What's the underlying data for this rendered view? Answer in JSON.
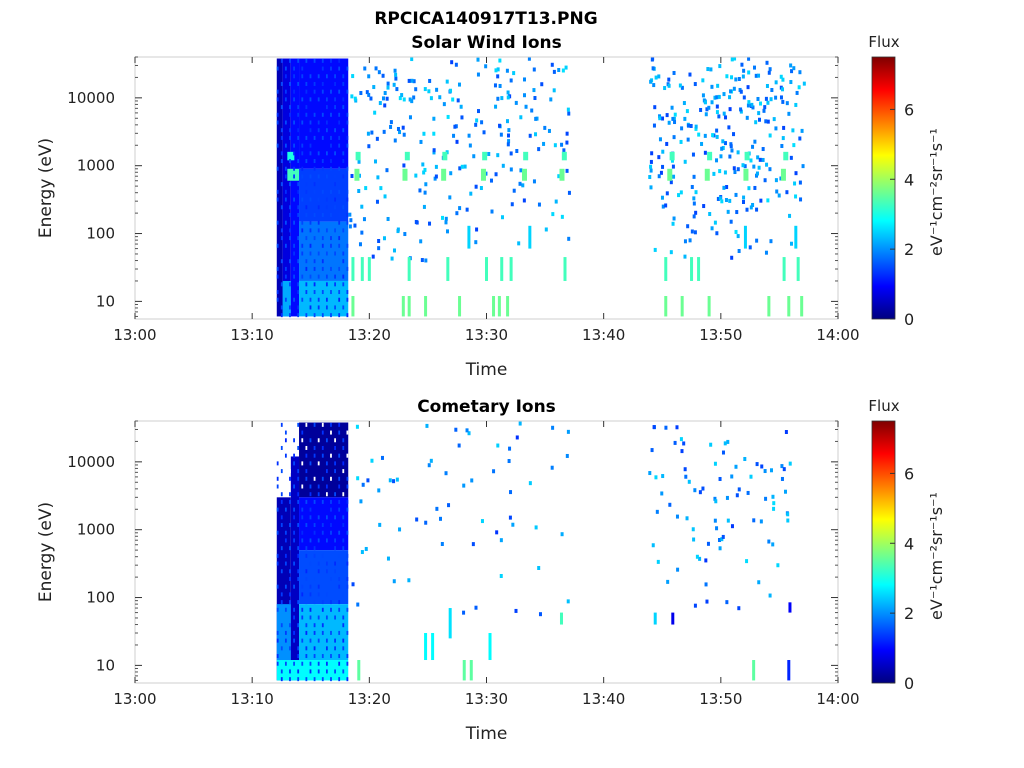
{
  "figure_title": "RPCICA140917T13.PNG",
  "colorscale": [
    "#00007f",
    "#0000ff",
    "#007fff",
    "#00ffff",
    "#7fff7f",
    "#ffff00",
    "#ff7f00",
    "#ff0000",
    "#7f0000"
  ],
  "chart_data": [
    {
      "type": "heatmap",
      "title": "Solar Wind Ions",
      "xlabel": "Time",
      "ylabel": "Energy (eV)",
      "x_ticks": [
        "13:00",
        "13:10",
        "13:20",
        "13:30",
        "13:40",
        "13:50",
        "14:00"
      ],
      "xlim_minutes": [
        0,
        60
      ],
      "y_ticks": [
        10,
        100,
        1000,
        10000
      ],
      "y_tick_labels": [
        "10",
        "100",
        "1000",
        "10000"
      ],
      "y_scale": "log",
      "ylim": [
        5.5,
        40000
      ],
      "colorbar": {
        "title": "Flux",
        "label": "eV⁻¹cm⁻²sr⁻¹s⁻¹",
        "ticks": [
          0,
          2,
          4,
          6
        ],
        "range": [
          0,
          7.5
        ]
      },
      "blocks": [
        {
          "t0": 12.1,
          "t1": 12.6,
          "e0": 6,
          "e1": 38000,
          "flux": 0.4
        },
        {
          "t0": 12.6,
          "t1": 13.3,
          "e0": 6,
          "e1": 38000,
          "flux": 0.7
        },
        {
          "t0": 13.3,
          "t1": 14.0,
          "e0": 6,
          "e1": 38000,
          "flux": 1.0
        },
        {
          "t0": 14.0,
          "t1": 18.2,
          "e0": 900,
          "e1": 38000,
          "flux": 1.0
        },
        {
          "t0": 14.0,
          "t1": 18.2,
          "e0": 150,
          "e1": 900,
          "flux": 1.4
        },
        {
          "t0": 14.0,
          "t1": 18.2,
          "e0": 20,
          "e1": 150,
          "flux": 1.8
        },
        {
          "t0": 14.0,
          "t1": 18.2,
          "e0": 6,
          "e1": 20,
          "flux": 2.3
        },
        {
          "t0": 13.0,
          "t1": 14.0,
          "e0": 600,
          "e1": 900,
          "flux": 3.3
        },
        {
          "t0": 13.0,
          "t1": 13.6,
          "e0": 1200,
          "e1": 1600,
          "flux": 3.0
        },
        {
          "t0": 12.6,
          "t1": 13.3,
          "e0": 6,
          "e1": 20,
          "flux": 2.2
        }
      ],
      "bars": [
        {
          "t": 18.6,
          "e0": 6,
          "e1": 12,
          "flux": 3.6
        },
        {
          "t": 18.6,
          "e0": 20,
          "e1": 45,
          "flux": 3.3
        },
        {
          "t": 19.4,
          "e0": 20,
          "e1": 45,
          "flux": 3.3
        },
        {
          "t": 20.0,
          "e0": 20,
          "e1": 45,
          "flux": 3.3
        },
        {
          "t": 22.9,
          "e0": 6,
          "e1": 12,
          "flux": 3.6
        },
        {
          "t": 23.4,
          "e0": 6,
          "e1": 12,
          "flux": 3.6
        },
        {
          "t": 24.8,
          "e0": 6,
          "e1": 12,
          "flux": 3.6
        },
        {
          "t": 23.4,
          "e0": 20,
          "e1": 45,
          "flux": 3.3
        },
        {
          "t": 26.7,
          "e0": 20,
          "e1": 45,
          "flux": 3.3
        },
        {
          "t": 27.7,
          "e0": 6,
          "e1": 12,
          "flux": 3.6
        },
        {
          "t": 28.5,
          "e0": 60,
          "e1": 130,
          "flux": 2.5
        },
        {
          "t": 30.0,
          "e0": 20,
          "e1": 45,
          "flux": 3.3
        },
        {
          "t": 30.6,
          "e0": 6,
          "e1": 12,
          "flux": 3.6
        },
        {
          "t": 31.1,
          "e0": 6,
          "e1": 12,
          "flux": 3.6
        },
        {
          "t": 31.3,
          "e0": 20,
          "e1": 45,
          "flux": 3.3
        },
        {
          "t": 31.8,
          "e0": 6,
          "e1": 12,
          "flux": 3.6
        },
        {
          "t": 32.1,
          "e0": 20,
          "e1": 45,
          "flux": 3.3
        },
        {
          "t": 33.7,
          "e0": 60,
          "e1": 130,
          "flux": 2.5
        },
        {
          "t": 36.7,
          "e0": 20,
          "e1": 45,
          "flux": 3.3
        },
        {
          "t": 45.3,
          "e0": 6,
          "e1": 12,
          "flux": 3.6
        },
        {
          "t": 45.3,
          "e0": 20,
          "e1": 45,
          "flux": 3.3
        },
        {
          "t": 46.7,
          "e0": 6,
          "e1": 12,
          "flux": 3.6
        },
        {
          "t": 47.5,
          "e0": 20,
          "e1": 45,
          "flux": 3.3
        },
        {
          "t": 48.1,
          "e0": 20,
          "e1": 45,
          "flux": 3.3
        },
        {
          "t": 49.0,
          "e0": 6,
          "e1": 12,
          "flux": 3.6
        },
        {
          "t": 52.1,
          "e0": 60,
          "e1": 130,
          "flux": 2.5
        },
        {
          "t": 54.1,
          "e0": 6,
          "e1": 12,
          "flux": 3.6
        },
        {
          "t": 55.4,
          "e0": 20,
          "e1": 45,
          "flux": 3.3
        },
        {
          "t": 55.8,
          "e0": 6,
          "e1": 12,
          "flux": 3.6
        },
        {
          "t": 56.4,
          "e0": 60,
          "e1": 130,
          "flux": 2.5
        },
        {
          "t": 56.6,
          "e0": 20,
          "e1": 45,
          "flux": 3.3
        },
        {
          "t": 56.9,
          "e0": 6,
          "e1": 12,
          "flux": 3.6
        }
      ],
      "scatter": {
        "seed": 7,
        "count": 520,
        "ranges": [
          [
            18.2,
            37.0
          ],
          [
            43.8,
            57.0
          ]
        ],
        "e0": 40,
        "e1": 38000,
        "flux_min": 1.4,
        "flux_max": 2.6
      },
      "bands": [
        {
          "e0": 600,
          "e1": 900,
          "times": [
            18.9,
            23.0,
            26.3,
            29.7,
            33.2,
            36.4,
            45.6,
            48.8,
            52.1,
            55.3
          ],
          "flux": 3.6
        },
        {
          "e0": 1200,
          "e1": 1600,
          "times": [
            19.0,
            23.2,
            26.4,
            29.8,
            33.3,
            36.6,
            45.8,
            49.0,
            52.2,
            55.5
          ],
          "flux": 3.3
        }
      ]
    },
    {
      "type": "heatmap",
      "title": "Cometary Ions",
      "xlabel": "Time",
      "ylabel": "Energy (eV)",
      "x_ticks": [
        "13:00",
        "13:10",
        "13:20",
        "13:30",
        "13:40",
        "13:50",
        "14:00"
      ],
      "xlim_minutes": [
        0,
        60
      ],
      "y_ticks": [
        10,
        100,
        1000,
        10000
      ],
      "y_tick_labels": [
        "10",
        "100",
        "1000",
        "10000"
      ],
      "y_scale": "log",
      "ylim": [
        5.5,
        40000
      ],
      "colorbar": {
        "title": "Flux",
        "label": "eV⁻¹cm⁻²sr⁻¹s⁻¹",
        "ticks": [
          0,
          2,
          4,
          6
        ],
        "range": [
          0,
          7.5
        ]
      },
      "blocks": [
        {
          "t0": 12.1,
          "t1": 13.3,
          "e0": 6,
          "e1": 3000,
          "flux": 0.4
        },
        {
          "t0": 13.3,
          "t1": 14.0,
          "e0": 6,
          "e1": 12000,
          "flux": 0.5
        },
        {
          "t0": 14.0,
          "t1": 18.2,
          "e0": 3000,
          "e1": 38000,
          "flux": 0.2
        },
        {
          "t0": 14.0,
          "t1": 18.2,
          "e0": 500,
          "e1": 3000,
          "flux": 1.0
        },
        {
          "t0": 14.0,
          "t1": 18.2,
          "e0": 80,
          "e1": 500,
          "flux": 1.5
        },
        {
          "t0": 14.0,
          "t1": 18.2,
          "e0": 12,
          "e1": 80,
          "flux": 2.3
        },
        {
          "t0": 12.1,
          "t1": 18.2,
          "e0": 6,
          "e1": 12,
          "flux": 2.8
        },
        {
          "t0": 12.1,
          "t1": 13.3,
          "e0": 12,
          "e1": 80,
          "flux": 2.0
        }
      ],
      "bars": [
        {
          "t": 19.1,
          "e0": 6,
          "e1": 12,
          "flux": 3.5
        },
        {
          "t": 24.8,
          "e0": 12,
          "e1": 30,
          "flux": 2.8
        },
        {
          "t": 25.4,
          "e0": 12,
          "e1": 30,
          "flux": 2.8
        },
        {
          "t": 26.9,
          "e0": 25,
          "e1": 70,
          "flux": 2.6
        },
        {
          "t": 28.1,
          "e0": 6,
          "e1": 12,
          "flux": 3.5
        },
        {
          "t": 28.7,
          "e0": 6,
          "e1": 12,
          "flux": 3.5
        },
        {
          "t": 30.3,
          "e0": 12,
          "e1": 30,
          "flux": 2.8
        },
        {
          "t": 36.4,
          "e0": 40,
          "e1": 60,
          "flux": 3.3
        },
        {
          "t": 44.4,
          "e0": 40,
          "e1": 60,
          "flux": 2.5
        },
        {
          "t": 45.9,
          "e0": 40,
          "e1": 60,
          "flux": 0.8
        },
        {
          "t": 52.8,
          "e0": 6,
          "e1": 12,
          "flux": 3.5
        },
        {
          "t": 55.8,
          "e0": 6,
          "e1": 12,
          "flux": 1.2
        },
        {
          "t": 55.9,
          "e0": 60,
          "e1": 85,
          "flux": 0.9
        }
      ],
      "scatter": {
        "seed": 19,
        "count": 150,
        "ranges": [
          [
            18.2,
            37.0
          ],
          [
            43.8,
            56.0
          ]
        ],
        "e0": 40,
        "e1": 38000,
        "flux_min": 1.3,
        "flux_max": 2.6
      },
      "bands": []
    }
  ]
}
